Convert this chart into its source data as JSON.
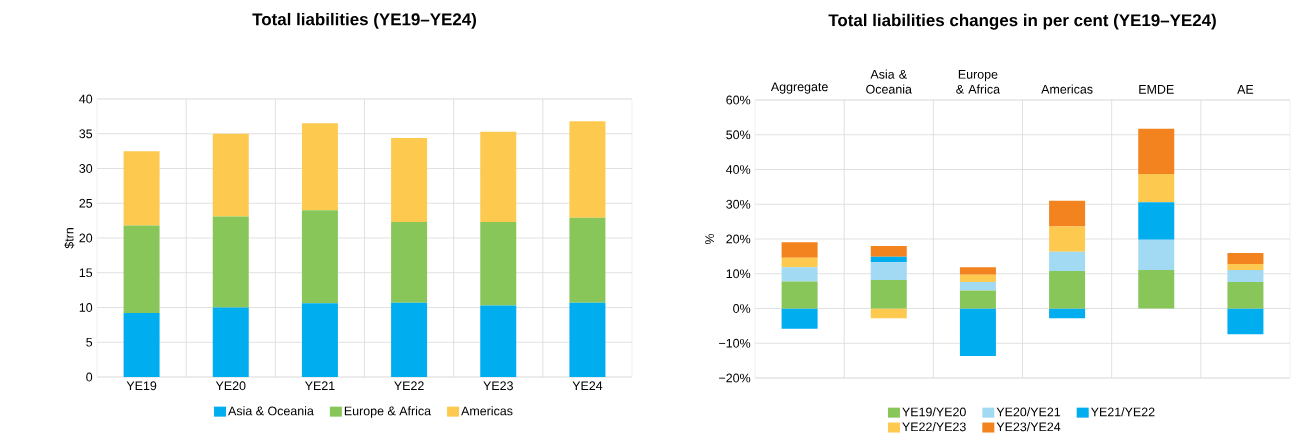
{
  "chart_data": [
    {
      "type": "bar",
      "title": "Total liabilities (YE19–YE24)",
      "ylabel": "$trn",
      "categories": [
        "YE19",
        "YE20",
        "YE21",
        "YE22",
        "YE23",
        "YE24"
      ],
      "stacked": true,
      "ylim": [
        0,
        40
      ],
      "yticks": [
        0,
        5,
        10,
        15,
        20,
        25,
        30,
        35,
        40
      ],
      "grid": true,
      "legend": "bottom",
      "series": [
        {
          "name": "Asia & Oceania",
          "color": "#00adef",
          "values": [
            9.2,
            10.0,
            10.6,
            10.7,
            10.3,
            10.7
          ]
        },
        {
          "name": "Europe & Africa",
          "color": "#89c659",
          "values": [
            12.6,
            13.1,
            13.4,
            11.6,
            12.0,
            12.2
          ]
        },
        {
          "name": "Americas",
          "color": "#fec94f",
          "values": [
            10.7,
            11.9,
            12.5,
            12.1,
            13.0,
            13.9
          ]
        }
      ]
    },
    {
      "type": "bar",
      "title": "Total liabilities changes in per cent (YE19–YE24)",
      "ylabel": "%",
      "categories": [
        "Aggregate",
        "Asia & Oceania",
        "Europe & Africa",
        "Americas",
        "EMDE",
        "AE"
      ],
      "stacked": true,
      "ylim": [
        -20,
        60
      ],
      "yticks": [
        {
          "value": -20,
          "label": "−20%"
        },
        {
          "value": -10,
          "label": "−10%"
        },
        {
          "value": 0,
          "label": "0%"
        },
        {
          "value": 10,
          "label": "10%"
        },
        {
          "value": 20,
          "label": "20%"
        },
        {
          "value": 30,
          "label": "30%"
        },
        {
          "value": 40,
          "label": "40%"
        },
        {
          "value": 50,
          "label": "50%"
        },
        {
          "value": 60,
          "label": "60%"
        }
      ],
      "grid": true,
      "legend": "bottom",
      "series": [
        {
          "name": "YE19/YE20",
          "color": "#89c659",
          "values": [
            7.8,
            8.2,
            5.2,
            10.8,
            11.1,
            7.6
          ]
        },
        {
          "name": "YE20/YE21",
          "color": "#a2d9f3",
          "values": [
            4.1,
            5.1,
            2.4,
            5.5,
            8.7,
            3.5
          ]
        },
        {
          "name": "YE21/YE22",
          "color": "#00adef",
          "values": [
            -5.8,
            1.6,
            -13.7,
            -2.8,
            10.8,
            -7.4
          ]
        },
        {
          "name": "YE22/YE23",
          "color": "#fec94f",
          "values": [
            2.7,
            -2.8,
            2.1,
            7.3,
            8.1,
            1.7
          ]
        },
        {
          "name": "YE23/YE24",
          "color": "#f3831f",
          "values": [
            4.5,
            3.1,
            2.2,
            7.4,
            13.0,
            3.2
          ]
        }
      ]
    }
  ]
}
